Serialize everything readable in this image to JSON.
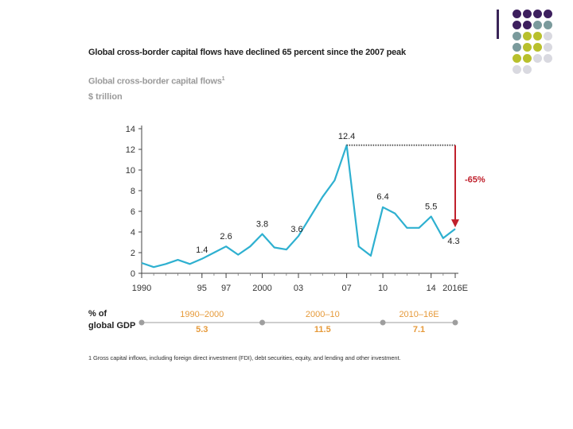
{
  "headline": "Global cross-border capital flows have declined 65 percent since the 2007 peak",
  "subtitle": "Global cross-border capital flows",
  "subtitle_footnote_marker": "1",
  "unit": "$ trillion",
  "chart_data": {
    "type": "line",
    "title": "Global cross-border capital flows",
    "ylabel": "$ trillion",
    "ylim": [
      0,
      14
    ],
    "yticks": [
      0,
      2,
      4,
      6,
      8,
      10,
      12,
      14
    ],
    "xlim": [
      1990,
      2016
    ],
    "xticks": [
      {
        "value": 1990,
        "label": "1990"
      },
      {
        "value": 1995,
        "label": "95"
      },
      {
        "value": 1997,
        "label": "97"
      },
      {
        "value": 2000,
        "label": "2000"
      },
      {
        "value": 2003,
        "label": "03"
      },
      {
        "value": 2007,
        "label": "07"
      },
      {
        "value": 2010,
        "label": "10"
      },
      {
        "value": 2014,
        "label": "14"
      },
      {
        "value": 2016,
        "label": "2016E"
      }
    ],
    "series": [
      {
        "color": "#2eb0d0",
        "x": [
          1990,
          1991,
          1992,
          1993,
          1994,
          1995,
          1996,
          1997,
          1998,
          1999,
          2000,
          2001,
          2002,
          2003,
          2004,
          2005,
          2006,
          2007,
          2008,
          2009,
          2010,
          2011,
          2012,
          2013,
          2014,
          2015,
          2016
        ],
        "y": [
          1.0,
          0.6,
          0.9,
          1.3,
          0.9,
          1.4,
          2.0,
          2.6,
          1.8,
          2.6,
          3.8,
          2.5,
          2.3,
          3.6,
          5.5,
          7.4,
          9.0,
          12.4,
          2.6,
          1.7,
          6.4,
          5.8,
          4.4,
          4.4,
          5.5,
          3.4,
          4.3
        ]
      }
    ],
    "data_labels": [
      {
        "x": 1995,
        "y": 1.4,
        "label": "1.4"
      },
      {
        "x": 1997,
        "y": 2.6,
        "label": "2.6"
      },
      {
        "x": 2000,
        "y": 3.8,
        "label": "3.8"
      },
      {
        "x": 2003,
        "y": 3.6,
        "label": "3.6"
      },
      {
        "x": 2007,
        "y": 12.4,
        "label": "12.4"
      },
      {
        "x": 2010,
        "y": 6.4,
        "label": "6.4"
      },
      {
        "x": 2014,
        "y": 5.5,
        "label": "5.5"
      },
      {
        "x": 2016,
        "y": 4.3,
        "label": "4.3"
      }
    ],
    "annotation": {
      "label": "-65%",
      "from": 12.4,
      "to": 4.3,
      "color": "#c0202c"
    },
    "grid": false
  },
  "gdp_share": {
    "label_line1": "% of",
    "label_line2": "global GDP",
    "periods": [
      {
        "range": "1990–2000",
        "value": "5.3",
        "start": 1990,
        "end": 2000
      },
      {
        "range": "2000–10",
        "value": "11.5",
        "start": 2000,
        "end": 2010
      },
      {
        "range": "2010–16E",
        "value": "7.1",
        "start": 2010,
        "end": 2016
      }
    ],
    "line_color": "#bdbdbd",
    "text_color": "#e69a3a"
  },
  "footnote": "1  Gross capital inflows, including foreign direct investment (FDI), debt securities, equity, and lending and other investment.",
  "decoration": {
    "dot_colors": [
      "#3d1f5e",
      "#7a9a9c",
      "#b8c02c",
      "#d9d9e0"
    ]
  }
}
